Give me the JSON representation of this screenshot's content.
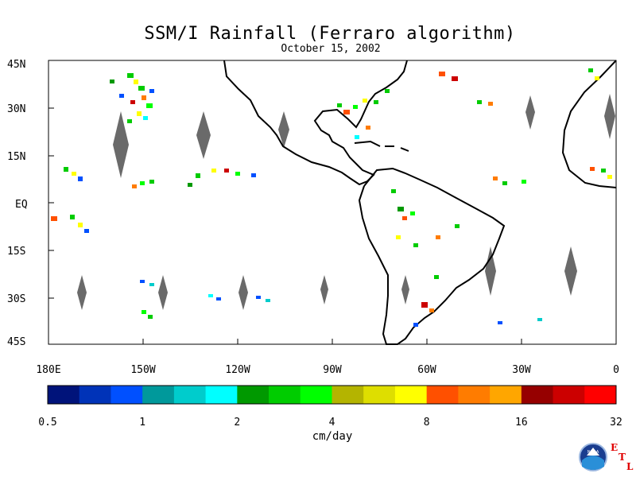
{
  "title": "SSM/I Rainfall (Ferraro algorithm)",
  "subtitle": "October 15, 2002",
  "lat_labels": [
    "45N",
    "30N",
    "15N",
    "EQ",
    "15S",
    "30S",
    "45S"
  ],
  "lon_labels": [
    "180E",
    "150W",
    "120W",
    "90W",
    "60W",
    "30W",
    "0"
  ],
  "colorbar": {
    "colors": [
      "#00137a",
      "#0033b8",
      "#0050ff",
      "#00999b",
      "#00cccc",
      "#00ffff",
      "#009900",
      "#00cc00",
      "#00ff00",
      "#b4b400",
      "#dede00",
      "#ffff00",
      "#ff5000",
      "#ff7c00",
      "#ffa600",
      "#960000",
      "#cc0000",
      "#ff0000"
    ],
    "tick_labels": [
      "0.5",
      "1",
      "2",
      "4",
      "8",
      "16",
      "32"
    ],
    "units": "cm/day"
  },
  "logo": {
    "name": "NOAA",
    "letters": [
      "E",
      "T",
      "L"
    ]
  }
}
